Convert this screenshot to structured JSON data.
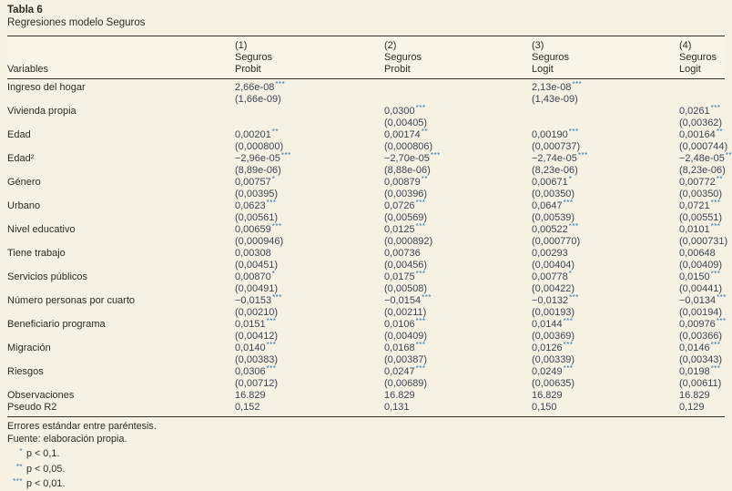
{
  "table": {
    "title": "Tabla 6",
    "subtitle": "Regresiones modelo Seguros",
    "col_header_label": "Variables",
    "columns": [
      {
        "num": "(1)",
        "dep": "Seguros",
        "model": "Probit"
      },
      {
        "num": "(2)",
        "dep": "Seguros",
        "model": "Probit"
      },
      {
        "num": "(3)",
        "dep": "Seguros",
        "model": "Logit"
      },
      {
        "num": "(4)",
        "dep": "Seguros",
        "model": "Logit"
      }
    ],
    "rows": [
      {
        "label": "Ingreso del hogar",
        "cells": [
          {
            "c": "2,66e-08",
            "s": "***",
            "e": "(1,66e-09)"
          },
          null,
          {
            "c": "2,13e-08",
            "s": "***",
            "e": "(1,43e-09)"
          },
          null
        ]
      },
      {
        "label": "Vivienda propia",
        "cells": [
          null,
          {
            "c": "0,0300",
            "s": "***",
            "e": "(0,00405)"
          },
          null,
          {
            "c": "0,0261",
            "s": "***",
            "e": "(0,00362)"
          }
        ]
      },
      {
        "label": "Edad",
        "cells": [
          {
            "c": "0,00201",
            "s": "**",
            "e": "(0,000800)"
          },
          {
            "c": "0,00174",
            "s": "**",
            "e": "(0,000806)"
          },
          {
            "c": "0,00190",
            "s": "***",
            "e": "(0,000737)"
          },
          {
            "c": "0,00164",
            "s": "**",
            "e": "(0,000744)"
          }
        ]
      },
      {
        "label": "Edad²",
        "cells": [
          {
            "c": "−2,96e-05",
            "s": "***",
            "e": "(8,89e-06)"
          },
          {
            "c": "−2,70e-05",
            "s": "***",
            "e": "(8,88e-06)"
          },
          {
            "c": "−2,74e-05",
            "s": "***",
            "e": "(8,23e-06)"
          },
          {
            "c": "−2,48e-05",
            "s": "***",
            "e": "(8,23e-06)"
          }
        ]
      },
      {
        "label": "Género",
        "cells": [
          {
            "c": "0,00757",
            "s": "*",
            "e": "(0,00395)"
          },
          {
            "c": "0,00879",
            "s": "**",
            "e": "(0,00396)"
          },
          {
            "c": "0,00671",
            "s": "*",
            "e": "(0,00350)"
          },
          {
            "c": "0,00772",
            "s": "**",
            "e": "(0,00350)"
          }
        ]
      },
      {
        "label": "Urbano",
        "cells": [
          {
            "c": "0,0623",
            "s": "***",
            "e": "(0,00561)"
          },
          {
            "c": "0,0726",
            "s": "***",
            "e": "(0,00569)"
          },
          {
            "c": "0,0647",
            "s": "***",
            "e": "(0,00539)"
          },
          {
            "c": "0,0721",
            "s": "***",
            "e": "(0,00551)"
          }
        ]
      },
      {
        "label": "Nivel educativo",
        "cells": [
          {
            "c": "0,00659",
            "s": "***",
            "e": "(0,000946)"
          },
          {
            "c": "0,0125",
            "s": "***",
            "e": "(0,000892)"
          },
          {
            "c": "0,00522",
            "s": "***",
            "e": "(0,000770)"
          },
          {
            "c": "0,0101",
            "s": "***",
            "e": "(0,000731)"
          }
        ]
      },
      {
        "label": "Tiene trabajo",
        "cells": [
          {
            "c": "0,00308",
            "s": "",
            "e": "(0,00451)"
          },
          {
            "c": "0,00736",
            "s": "",
            "e": "(0,00456)"
          },
          {
            "c": "0,00293",
            "s": "",
            "e": "(0,00404)"
          },
          {
            "c": "0,00648",
            "s": "",
            "e": "(0,00409)"
          }
        ]
      },
      {
        "label": "Servicios públicos",
        "cells": [
          {
            "c": "0,00870",
            "s": "*",
            "e": "(0,00491)"
          },
          {
            "c": "0,0175",
            "s": "***",
            "e": "(0,00508)"
          },
          {
            "c": "0,00778",
            "s": "*",
            "e": "(0,00422)"
          },
          {
            "c": "0,0150",
            "s": "***",
            "e": "(0,00441)"
          }
        ]
      },
      {
        "label": "Número personas por cuarto",
        "cells": [
          {
            "c": "−0,0153",
            "s": "***",
            "e": "(0,00210)"
          },
          {
            "c": "−0,0154",
            "s": "***",
            "e": "(0,00211)"
          },
          {
            "c": "−0,0132",
            "s": "***",
            "e": "(0,00193)"
          },
          {
            "c": "−0,0134",
            "s": "***",
            "e": "(0,00194)"
          }
        ]
      },
      {
        "label": "Beneficiario programa",
        "cells": [
          {
            "c": "0,0151",
            "s": "***",
            "e": "(0,00412)"
          },
          {
            "c": "0,0106",
            "s": "***",
            "e": "(0,00409)"
          },
          {
            "c": "0,0144",
            "s": "***",
            "e": "(0,00369)"
          },
          {
            "c": "0,00976",
            "s": "***",
            "e": "(0,00366)"
          }
        ]
      },
      {
        "label": "Migración",
        "cells": [
          {
            "c": "0,0140",
            "s": "***",
            "e": "(0,00383)"
          },
          {
            "c": "0,0168",
            "s": "***",
            "e": "(0,00387)"
          },
          {
            "c": "0,0126",
            "s": "***",
            "e": "(0,00339)"
          },
          {
            "c": "0,0146",
            "s": "***",
            "e": "(0,00343)"
          }
        ]
      },
      {
        "label": "Riesgos",
        "cells": [
          {
            "c": "0,0306",
            "s": "***",
            "e": "(0,00712)"
          },
          {
            "c": "0,0247",
            "s": "***",
            "e": "(0,00689)"
          },
          {
            "c": "0,0249",
            "s": "***",
            "e": "(0,00635)"
          },
          {
            "c": "0,0198",
            "s": "***",
            "e": "(0,00611)"
          }
        ]
      }
    ],
    "stats_rows": [
      {
        "label": "Observaciones",
        "values": [
          "16.829",
          "16.829",
          "16.829",
          "16.829"
        ]
      },
      {
        "label": "Pseudo R2",
        "values": [
          "0,152",
          "0,131",
          "0,150",
          "0,129"
        ]
      }
    ],
    "footnotes": {
      "line1": "Errores estándar entre paréntesis.",
      "line2": "Fuente: elaboración propia.",
      "sig": [
        {
          "stars": "*",
          "text": "p < 0,1."
        },
        {
          "stars": "**",
          "text": "p < 0,05."
        },
        {
          "stars": "***",
          "text": "p < 0,01."
        }
      ]
    }
  }
}
